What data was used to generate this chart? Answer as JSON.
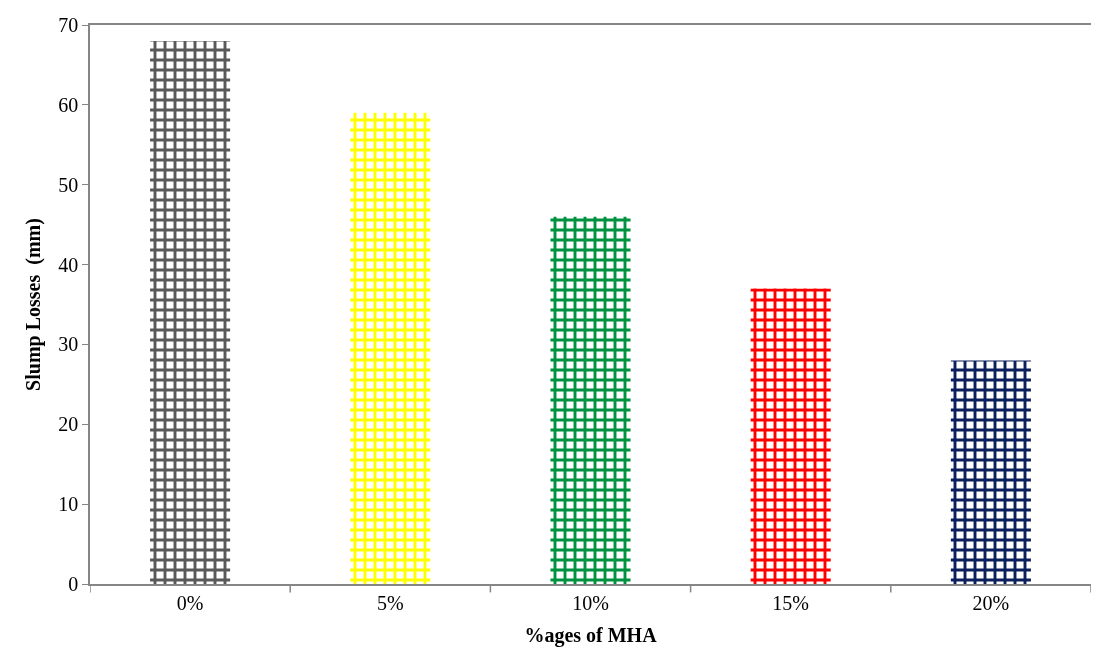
{
  "chart_data": {
    "type": "bar",
    "xlabel": "%ages of MHA",
    "ylabel": "Slump Losses  (mm)",
    "categories": [
      "0%",
      "5%",
      "10%",
      "15%",
      "20%"
    ],
    "values": [
      68,
      59,
      46,
      37,
      28
    ],
    "colors": [
      "#595959",
      "#ffff00",
      "#00923f",
      "#ff0000",
      "#0b1f5c"
    ],
    "ylim": [
      0,
      70
    ],
    "yticks": [
      0,
      10,
      20,
      30,
      40,
      50,
      60,
      70
    ]
  }
}
